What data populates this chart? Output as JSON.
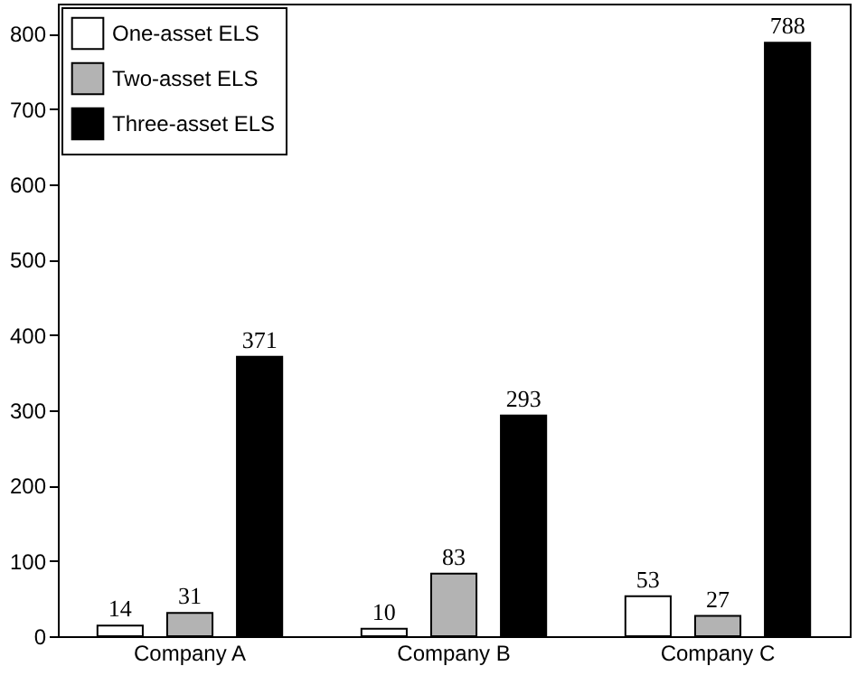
{
  "chart_data": {
    "type": "bar",
    "categories": [
      "Company A",
      "Company B",
      "Company C"
    ],
    "series": [
      {
        "name": "One-asset ELS",
        "color": "#ffffff",
        "values": [
          14,
          10,
          53
        ]
      },
      {
        "name": "Two-asset ELS",
        "color": "#b3b3b3",
        "values": [
          31,
          83,
          27
        ]
      },
      {
        "name": "Three-asset ELS",
        "color": "#000000",
        "values": [
          371,
          293,
          788
        ]
      }
    ],
    "ylim": [
      0,
      840
    ],
    "yticks": [
      0,
      100,
      200,
      300,
      400,
      500,
      600,
      700,
      800
    ],
    "grid": false,
    "legend": "top left",
    "data_labels": true
  }
}
